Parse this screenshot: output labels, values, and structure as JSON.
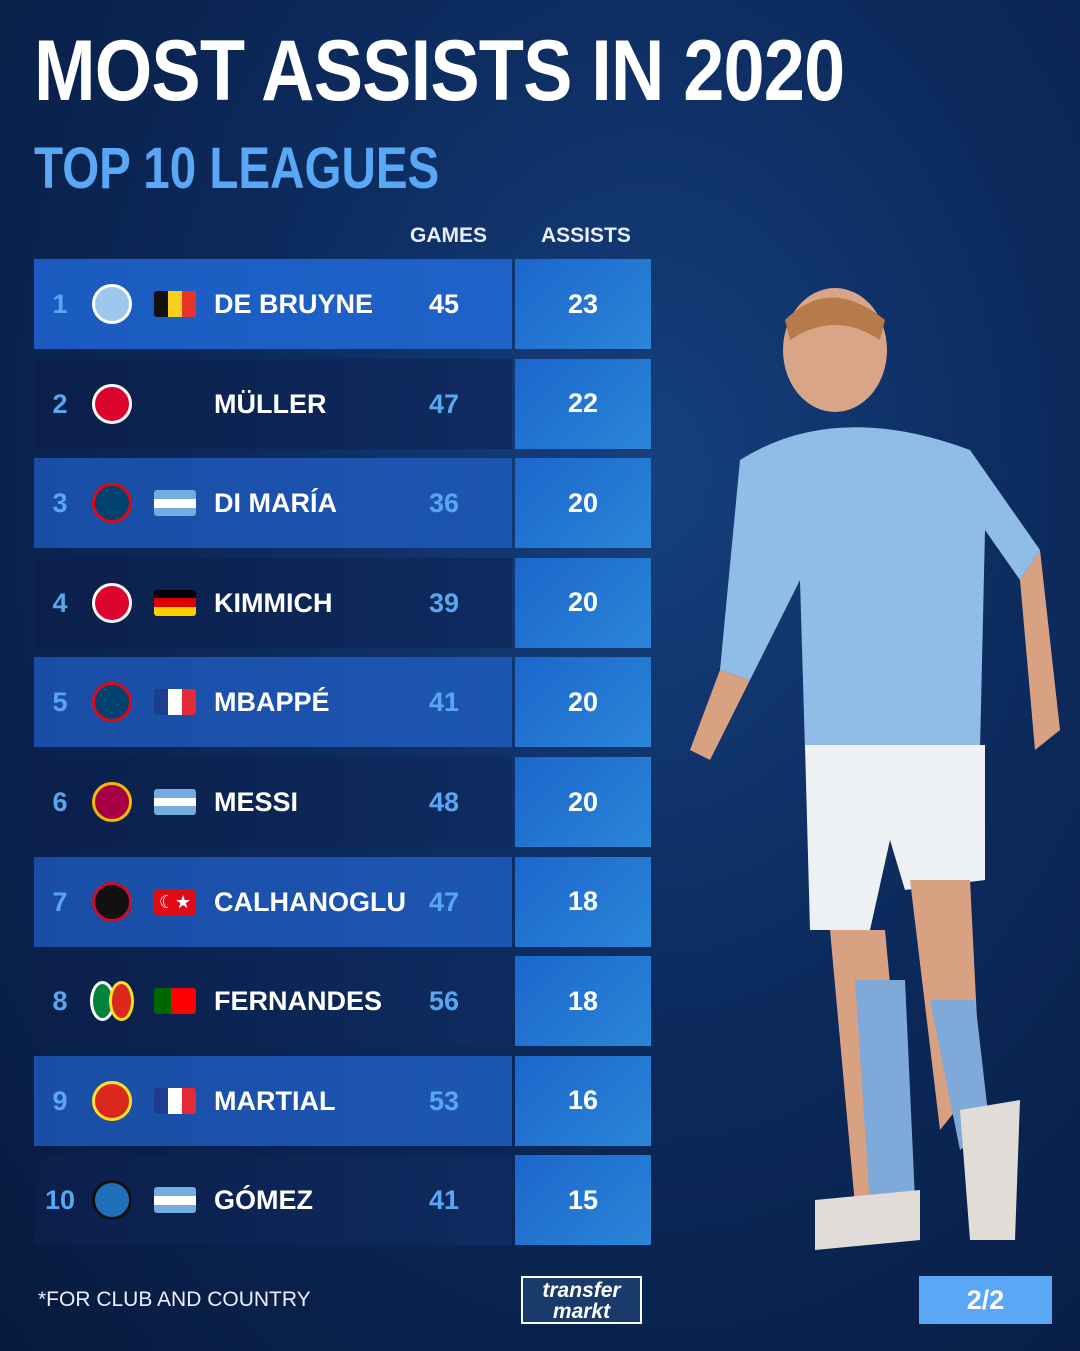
{
  "header": {
    "title": "MOST ASSISTS IN 2020",
    "subtitle": "TOP 10 LEAGUES"
  },
  "chart_data": {
    "type": "table",
    "columns": [
      "GAMES",
      "ASSISTS"
    ],
    "rows": [
      {
        "rank": "1",
        "clubs": [
          "manchester-city"
        ],
        "flag": "belgium",
        "name": "DE BRUYNE",
        "games": "45",
        "assists": "23"
      },
      {
        "rank": "2",
        "clubs": [
          "bayern-munich"
        ],
        "flag": "",
        "name": "MÜLLER",
        "games": "47",
        "assists": "22"
      },
      {
        "rank": "3",
        "clubs": [
          "psg"
        ],
        "flag": "argentina",
        "name": "DI MARÍA",
        "games": "36",
        "assists": "20"
      },
      {
        "rank": "4",
        "clubs": [
          "bayern-munich"
        ],
        "flag": "germany",
        "name": "KIMMICH",
        "games": "39",
        "assists": "20"
      },
      {
        "rank": "5",
        "clubs": [
          "psg"
        ],
        "flag": "france",
        "name": "MBAPPÉ",
        "games": "41",
        "assists": "20"
      },
      {
        "rank": "6",
        "clubs": [
          "barcelona"
        ],
        "flag": "argentina",
        "name": "MESSI",
        "games": "48",
        "assists": "20"
      },
      {
        "rank": "7",
        "clubs": [
          "ac-milan"
        ],
        "flag": "turkey",
        "name": "CALHANOGLU",
        "games": "47",
        "assists": "18"
      },
      {
        "rank": "8",
        "clubs": [
          "sporting-cp",
          "manchester-united"
        ],
        "flag": "portugal",
        "name": "FERNANDES",
        "games": "56",
        "assists": "18"
      },
      {
        "rank": "9",
        "clubs": [
          "manchester-united"
        ],
        "flag": "france",
        "name": "MARTIAL",
        "games": "53",
        "assists": "16"
      },
      {
        "rank": "10",
        "clubs": [
          "atalanta"
        ],
        "flag": "argentina",
        "name": "GÓMEZ",
        "games": "41",
        "assists": "15"
      }
    ]
  },
  "footer": {
    "note": "*FOR CLUB AND COUNTRY",
    "logo_line1": "transfer",
    "logo_line2": "markt",
    "page": "2/2"
  },
  "colors": {
    "accent": "#5aa8f5",
    "highlight_row": "#1b5bc0",
    "assists_cell": "#2a86d8"
  }
}
